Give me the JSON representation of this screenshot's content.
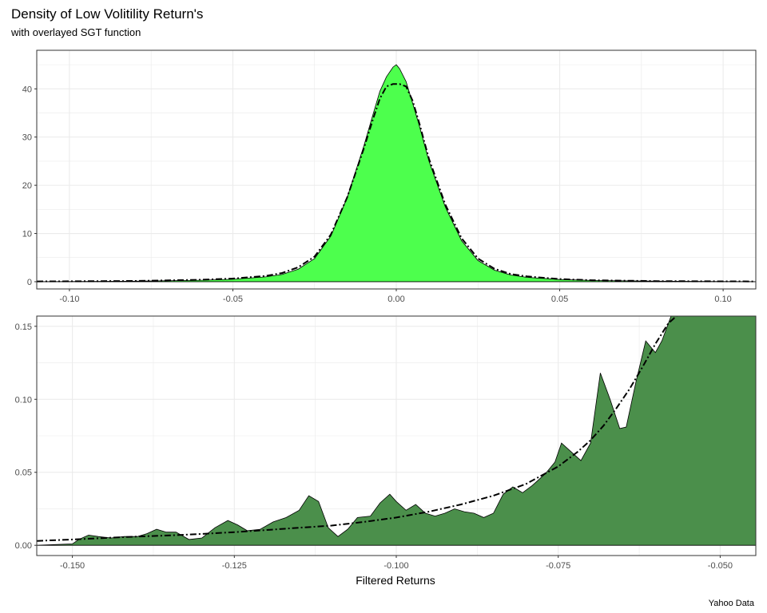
{
  "figure": {
    "title": "Density of Low Volitility Return's",
    "subtitle": "with overlayed SGT function",
    "caption": "Yahoo Data",
    "xlabel": "Filtered Returns"
  },
  "colors": {
    "top_fill": "#4dff4d",
    "bottom_fill": "#4b8f4b",
    "outline": "#000000",
    "grid": "#ebebeb",
    "panel_border": "#333333"
  },
  "chart_data": [
    {
      "type": "area",
      "panel": "top",
      "xlim": [
        -0.11,
        0.11
      ],
      "ylim": [
        -1.5,
        48
      ],
      "xticks": [
        -0.1,
        -0.05,
        0.0,
        0.05,
        0.1
      ],
      "xtick_labels": [
        "-0.10",
        "-0.05",
        "0.00",
        "0.05",
        "0.10"
      ],
      "yticks": [
        0,
        10,
        20,
        30,
        40
      ],
      "ytick_labels": [
        "0",
        "10",
        "20",
        "30",
        "40"
      ],
      "grid": true,
      "density": {
        "x": [
          -0.11,
          -0.08,
          -0.06,
          -0.05,
          -0.04,
          -0.035,
          -0.03,
          -0.025,
          -0.02,
          -0.015,
          -0.01,
          -0.007,
          -0.005,
          -0.003,
          -0.001,
          0.0,
          0.001,
          0.003,
          0.005,
          0.007,
          0.01,
          0.015,
          0.02,
          0.025,
          0.03,
          0.035,
          0.04,
          0.05,
          0.06,
          0.08,
          0.11
        ],
        "y": [
          0,
          0.1,
          0.3,
          0.5,
          1.0,
          1.5,
          2.6,
          4.8,
          9.5,
          17.5,
          28.0,
          35.0,
          39.5,
          42.5,
          44.5,
          45.0,
          44.2,
          41.5,
          37.0,
          32.5,
          25.0,
          15.5,
          8.5,
          4.4,
          2.4,
          1.4,
          0.9,
          0.45,
          0.25,
          0.1,
          0
        ]
      },
      "sgt": {
        "x": [
          -0.11,
          -0.08,
          -0.06,
          -0.05,
          -0.04,
          -0.035,
          -0.03,
          -0.025,
          -0.02,
          -0.015,
          -0.01,
          -0.007,
          -0.005,
          -0.003,
          -0.001,
          0.0,
          0.001,
          0.003,
          0.005,
          0.007,
          0.01,
          0.015,
          0.02,
          0.025,
          0.03,
          0.035,
          0.04,
          0.05,
          0.06,
          0.08,
          0.11
        ],
        "y": [
          0.05,
          0.15,
          0.4,
          0.65,
          1.2,
          1.8,
          3.0,
          5.2,
          9.8,
          17.5,
          27.5,
          34.0,
          38.0,
          40.5,
          41.0,
          41.0,
          41.0,
          40.5,
          37.5,
          33.0,
          25.5,
          16.0,
          9.0,
          4.8,
          2.7,
          1.6,
          1.1,
          0.55,
          0.3,
          0.12,
          0.05
        ]
      }
    },
    {
      "type": "area",
      "panel": "bottom",
      "xlim": [
        -0.1555,
        -0.0445
      ],
      "ylim": [
        -0.007,
        0.157
      ],
      "xticks": [
        -0.15,
        -0.125,
        -0.1,
        -0.075,
        -0.05
      ],
      "xtick_labels": [
        "-0.150",
        "-0.125",
        "-0.100",
        "-0.075",
        "-0.050"
      ],
      "yticks": [
        0.0,
        0.05,
        0.1,
        0.15
      ],
      "ytick_labels": [
        "0.00",
        "0.05",
        "0.10",
        "0.15"
      ],
      "grid": true,
      "density": {
        "x": [
          -0.1555,
          -0.15,
          -0.149,
          -0.1475,
          -0.146,
          -0.144,
          -0.142,
          -0.14,
          -0.1385,
          -0.137,
          -0.1355,
          -0.134,
          -0.132,
          -0.13,
          -0.128,
          -0.126,
          -0.1245,
          -0.123,
          -0.121,
          -0.119,
          -0.117,
          -0.115,
          -0.1135,
          -0.112,
          -0.1105,
          -0.109,
          -0.1075,
          -0.106,
          -0.104,
          -0.1025,
          -0.101,
          -0.1,
          -0.0985,
          -0.097,
          -0.0955,
          -0.094,
          -0.0925,
          -0.091,
          -0.0895,
          -0.088,
          -0.0865,
          -0.085,
          -0.0835,
          -0.082,
          -0.0805,
          -0.079,
          -0.077,
          -0.0755,
          -0.0745,
          -0.073,
          -0.0715,
          -0.07,
          -0.0685,
          -0.067,
          -0.0655,
          -0.0645,
          -0.063,
          -0.0615,
          -0.06,
          -0.059,
          -0.0575,
          -0.0565,
          -0.0445
        ],
        "y": [
          0,
          0.001,
          0.004,
          0.007,
          0.006,
          0.005,
          0.006,
          0.006,
          0.008,
          0.011,
          0.009,
          0.009,
          0.004,
          0.005,
          0.012,
          0.017,
          0.014,
          0.01,
          0.011,
          0.016,
          0.019,
          0.024,
          0.034,
          0.03,
          0.012,
          0.006,
          0.011,
          0.019,
          0.02,
          0.029,
          0.035,
          0.03,
          0.024,
          0.028,
          0.022,
          0.02,
          0.022,
          0.025,
          0.023,
          0.022,
          0.019,
          0.022,
          0.035,
          0.04,
          0.036,
          0.041,
          0.049,
          0.057,
          0.07,
          0.064,
          0.058,
          0.07,
          0.118,
          0.1,
          0.08,
          0.081,
          0.112,
          0.14,
          0.132,
          0.14,
          0.158,
          0.158,
          0.158
        ]
      },
      "sgt": {
        "x": [
          -0.1555,
          -0.15,
          -0.145,
          -0.14,
          -0.135,
          -0.13,
          -0.125,
          -0.12,
          -0.115,
          -0.11,
          -0.105,
          -0.1,
          -0.095,
          -0.09,
          -0.085,
          -0.08,
          -0.075,
          -0.072,
          -0.07,
          -0.068,
          -0.066,
          -0.064,
          -0.062,
          -0.06,
          -0.058,
          -0.0565
        ],
        "y": [
          0.003,
          0.004,
          0.005,
          0.006,
          0.0068,
          0.0078,
          0.009,
          0.0105,
          0.012,
          0.0135,
          0.016,
          0.019,
          0.023,
          0.028,
          0.034,
          0.042,
          0.054,
          0.064,
          0.072,
          0.082,
          0.094,
          0.107,
          0.122,
          0.138,
          0.152,
          0.158
        ]
      }
    }
  ]
}
